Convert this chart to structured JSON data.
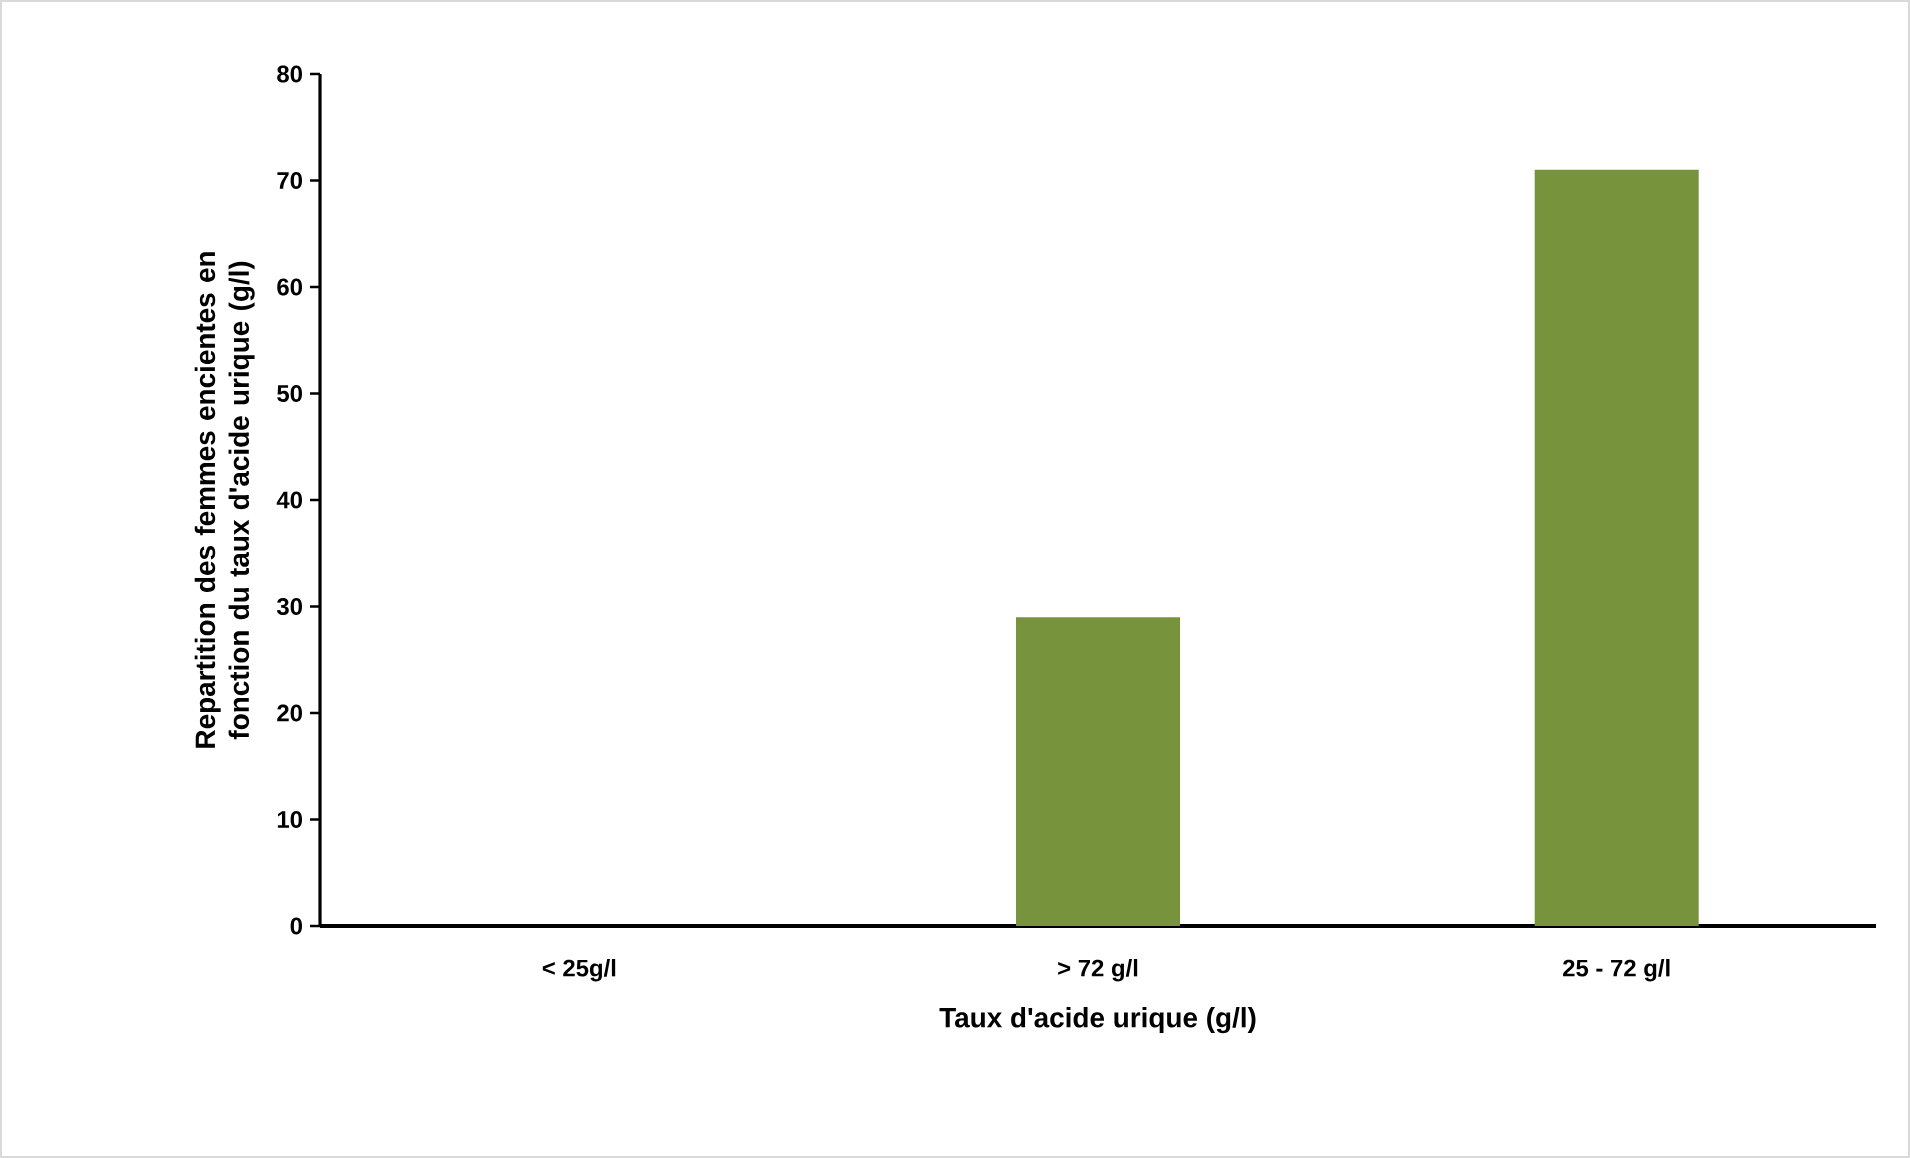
{
  "chart_data": {
    "type": "bar",
    "categories": [
      "< 25g/l",
      "> 72 g/l",
      "25 - 72 g/l"
    ],
    "values": [
      0,
      29,
      71
    ],
    "color": "#77933c",
    "xlabel": "Taux d'acide urique (g/l)",
    "ylabel": "Repartition des femmes encientes en fonction du taux d'acide urique (g/l)",
    "ylim": [
      0,
      80
    ],
    "yticks": [
      0,
      10,
      20,
      30,
      40,
      50,
      60,
      70,
      80
    ]
  }
}
